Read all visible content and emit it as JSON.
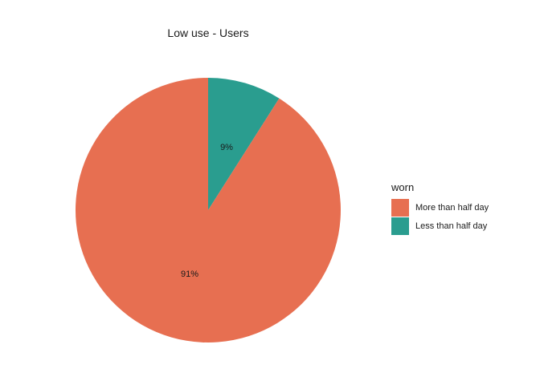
{
  "chart_data": {
    "type": "pie",
    "title": "Low use - Users",
    "legend": {
      "title": "worn",
      "position": "right"
    },
    "categories": [
      "More than half day",
      "Less than half day"
    ],
    "values": [
      91,
      9
    ],
    "labels": [
      "91%",
      "9%"
    ],
    "colors": [
      "#E76F51",
      "#2A9D8F"
    ],
    "start": "12 o'clock",
    "direction": "clockwise, smaller slice first"
  }
}
